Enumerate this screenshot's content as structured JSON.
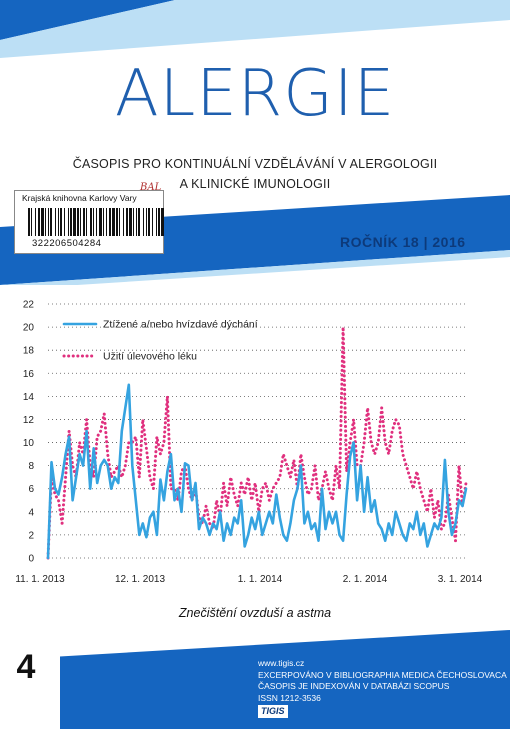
{
  "journal": {
    "title": "ALERGIE",
    "subtitle_line1": "ČASOPIS PRO KONTINUÁLNÍ VZDĚLÁVÁNÍ V ALERGOLOGII",
    "subtitle_line2": "A KLINICKÉ IMUNOLOGII",
    "volume": "ROČNÍK 18 | 2016",
    "issue": "4"
  },
  "library_label": {
    "name": "Krajská knihovna Karlovy Vary",
    "handwritten": "BAL",
    "barcode_number": "322206504284"
  },
  "colors": {
    "brand_blue": "#1565c0",
    "light_blue": "#35a3e0",
    "magenta": "#e0307e"
  },
  "chart_data": {
    "type": "line",
    "caption": "Znečištění ovzduší a astma",
    "ylim": [
      0,
      22
    ],
    "yticks": [
      0,
      2,
      4,
      6,
      8,
      10,
      12,
      14,
      16,
      18,
      20,
      22
    ],
    "xticks": [
      "11. 1. 2013",
      "12. 1. 2013",
      "1. 1. 2014",
      "2. 1. 2014",
      "3. 1. 2014"
    ],
    "grid": "dotted horizontal",
    "legend_position": "top-left",
    "series": [
      {
        "name": "Ztížené a/nebo hvízdavé dýchání",
        "style": "solid",
        "values": [
          0,
          8.3,
          6,
          5.5,
          7,
          9,
          10.5,
          5,
          7,
          9,
          8,
          11,
          6,
          9.5,
          6.5,
          8,
          8.5,
          8,
          6,
          7,
          6.5,
          11,
          13,
          15,
          8,
          5,
          2,
          3,
          1.8,
          3.5,
          4,
          2,
          6.8,
          5,
          7.5,
          9,
          5,
          6,
          4,
          8.2,
          8,
          5,
          6.5,
          2.5,
          3.5,
          3,
          2,
          3,
          2.5,
          4,
          1.5,
          3,
          2,
          3.5,
          3,
          5,
          1,
          2,
          3.5,
          2.5,
          4,
          2,
          3,
          4,
          3,
          5.5,
          3.5,
          2,
          1.5,
          3,
          5,
          6,
          8,
          3,
          4,
          2.5,
          3,
          1.5,
          6,
          2.5,
          4,
          3,
          4,
          2,
          1.5,
          5.5,
          8.8,
          10,
          5,
          8,
          4,
          7,
          4,
          5,
          3,
          2.5,
          1.5,
          3,
          2,
          4,
          3,
          2,
          1.5,
          3,
          2.5,
          4,
          2,
          3,
          1,
          2,
          3,
          2.5,
          3.5,
          8.5,
          4,
          2,
          3,
          5,
          4.5,
          6
        ]
      },
      {
        "name": "Užití úlevového léku",
        "style": "dotted",
        "values": [
          0,
          7,
          5.5,
          5,
          3,
          7,
          11,
          8,
          7,
          10,
          9,
          12,
          8,
          7,
          10.5,
          11,
          12.5,
          9,
          7,
          7.5,
          8,
          7,
          8,
          10,
          10,
          10.5,
          7,
          12,
          9.5,
          7,
          6,
          10.5,
          9,
          10,
          14,
          6,
          6,
          5,
          7.5,
          8,
          6,
          5,
          6,
          3.5,
          3,
          4.5,
          3,
          2.5,
          5,
          3.5,
          6.5,
          4.5,
          7,
          5.5,
          4.5,
          6.5,
          5.5,
          7,
          5,
          6.5,
          4,
          6,
          6.5,
          5,
          6,
          6.5,
          7,
          9,
          8,
          7,
          8.5,
          6,
          9,
          7,
          5.5,
          6,
          8,
          5,
          6,
          7.5,
          6,
          5,
          8,
          6,
          20,
          7.5,
          10,
          12,
          8,
          8,
          10,
          13,
          10,
          9,
          10,
          13,
          10,
          9,
          11,
          12,
          11.5,
          9,
          8,
          7,
          6,
          7.5,
          6,
          5,
          4,
          6,
          3.5,
          5,
          2.5,
          3,
          5.5,
          3.5,
          1.5,
          8,
          4.5,
          6.5
        ]
      }
    ]
  }
}
